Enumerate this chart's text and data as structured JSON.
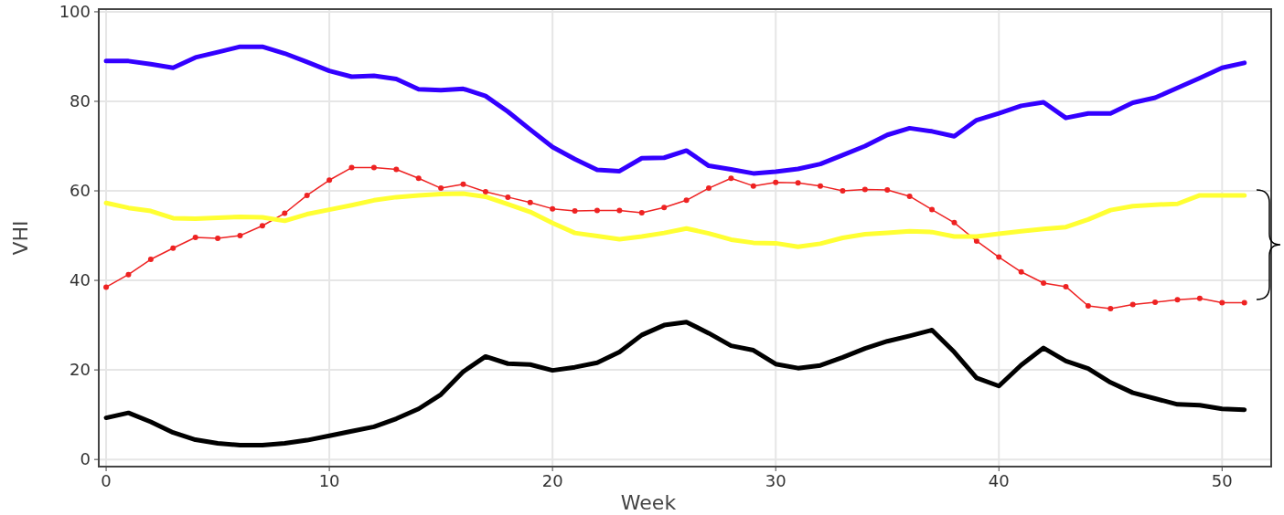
{
  "chart_data": {
    "type": "line",
    "xlabel": "Week",
    "ylabel": "VHI",
    "xlim": [
      -0.33,
      52.2
    ],
    "ylim": [
      -1.6,
      100.6
    ],
    "xticks": [
      0,
      10,
      20,
      30,
      40,
      50
    ],
    "yticks": [
      0,
      20,
      40,
      60,
      80,
      100
    ],
    "grid": true,
    "marker": "none",
    "x": [
      0,
      1,
      2,
      3,
      4,
      5,
      6,
      7,
      8,
      9,
      10,
      11,
      12,
      13,
      14,
      15,
      16,
      17,
      18,
      19,
      20,
      21,
      22,
      23,
      24,
      25,
      26,
      27,
      28,
      29,
      30,
      31,
      32,
      33,
      34,
      35,
      36,
      37,
      38,
      39,
      40,
      41,
      42,
      43,
      44,
      45,
      46,
      47,
      48,
      49,
      50,
      51
    ],
    "series": [
      {
        "color": "#3300ff",
        "values": [
          89,
          89,
          88.3,
          87.5,
          89.8,
          91,
          92.2,
          92.2,
          90.7,
          88.8,
          86.8,
          85.5,
          85.7,
          85,
          82.7,
          82.5,
          82.8,
          81.2,
          77.7,
          73.7,
          69.8,
          67.1,
          64.7,
          64.4,
          67.3,
          67.4,
          69,
          65.6,
          64.8,
          63.9,
          64.3,
          64.9,
          66,
          68,
          70,
          72.5,
          74,
          73.3,
          72.2,
          75.8,
          77.3,
          79,
          79.8,
          76.3,
          77.3,
          77.3,
          79.7,
          80.8,
          83,
          85.2,
          87.5,
          88.6
        ]
      },
      {
        "color": "#ee2222",
        "marker": "circle",
        "values": [
          38.5,
          41.3,
          44.7,
          47.2,
          49.6,
          49.4,
          50,
          52.2,
          55,
          59,
          62.4,
          65.2,
          65.2,
          64.8,
          62.8,
          60.6,
          61.5,
          59.8,
          58.6,
          57.4,
          56,
          55.5,
          55.6,
          55.6,
          55.1,
          56.3,
          57.9,
          60.6,
          62.8,
          61.1,
          61.9,
          61.8,
          61.1,
          60,
          60.3,
          60.2,
          58.8,
          55.8,
          52.9,
          48.8,
          45.2,
          41.9,
          39.4,
          38.6,
          34.3,
          33.7,
          34.6,
          35.1,
          35.7,
          36,
          35,
          35
        ]
      },
      {
        "color": "#ffff33",
        "values": [
          57.3,
          56.2,
          55.5,
          53.9,
          53.8,
          54,
          54.2,
          54.1,
          53.3,
          54.8,
          55.8,
          56.8,
          57.9,
          58.6,
          59,
          59.3,
          59.4,
          58.7,
          57,
          55.3,
          52.8,
          50.6,
          49.9,
          49.2,
          49.8,
          50.6,
          51.6,
          50.5,
          49.1,
          48.4,
          48.3,
          47.5,
          48.2,
          49.5,
          50.3,
          50.6,
          51,
          50.8,
          49.8,
          49.8,
          50.4,
          51,
          51.5,
          51.9,
          53.6,
          55.7,
          56.6,
          56.9,
          57.1,
          59,
          59,
          59
        ]
      },
      {
        "color": "#000000",
        "values": [
          9.3,
          10.4,
          8.4,
          6,
          4.4,
          3.6,
          3.2,
          3.2,
          3.6,
          4.3,
          5.3,
          6.3,
          7.3,
          9.1,
          11.3,
          14.5,
          19.6,
          23,
          21.4,
          21.2,
          19.9,
          20.6,
          21.6,
          24,
          27.8,
          30,
          30.7,
          28.2,
          25.4,
          24.4,
          21.3,
          20.4,
          21,
          22.8,
          24.8,
          26.4,
          27.6,
          28.9,
          24,
          18.2,
          16.4,
          21.1,
          24.9,
          22,
          20.3,
          17.2,
          14.9,
          13.6,
          12.3,
          12.1,
          11.3,
          11.1
        ]
      }
    ]
  }
}
